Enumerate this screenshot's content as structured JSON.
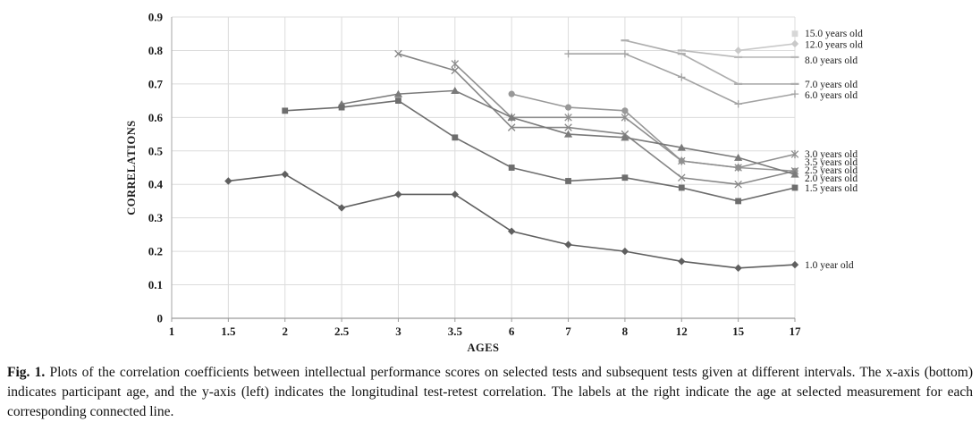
{
  "figure": {
    "caption_label": "Fig. 1.",
    "caption_text": "Plots of the correlation coefficients between intellectual performance scores on selected tests and subsequent tests given at different intervals. The x-axis (bottom) indicates participant age, and the y-axis (left) indicates the longitudinal test-retest correlation. The labels at the right indicate the age at selected measurement for each corresponding connected line."
  },
  "chart_data": {
    "type": "line",
    "title": "",
    "xlabel": "AGES",
    "ylabel": "CORRELATIONS",
    "categories": [
      "1",
      "1.5",
      "2",
      "2.5",
      "3",
      "3.5",
      "6",
      "7",
      "8",
      "12",
      "15",
      "17"
    ],
    "y_tick_labels": [
      "0.9",
      "0.8",
      "0.7",
      "0.6",
      "0.5",
      "0.4",
      "0.3",
      "0.2",
      "0.1",
      "0"
    ],
    "ylim": [
      0,
      0.9
    ],
    "grid": true,
    "legend_position": "right-of-last-point",
    "gridline_color": "#dcdcdc",
    "axis_color": "#9a9a9a",
    "series": [
      {
        "name": "1.0 year old",
        "marker": "diamond",
        "color": "#5f5f5f",
        "label_v": 0.16,
        "values": [
          null,
          0.41,
          0.43,
          0.33,
          0.37,
          0.37,
          0.26,
          0.22,
          0.2,
          0.17,
          0.15,
          0.16
        ]
      },
      {
        "name": "1.5 years old",
        "marker": "square",
        "color": "#6d6d6d",
        "label_v": 0.39,
        "values": [
          null,
          null,
          0.62,
          0.63,
          0.65,
          0.54,
          0.45,
          0.41,
          0.42,
          0.39,
          0.35,
          0.39
        ]
      },
      {
        "name": "2.0 years old",
        "marker": "triangle",
        "color": "#7a7a7a",
        "label_v": 0.419,
        "values": [
          null,
          null,
          null,
          0.64,
          0.67,
          0.68,
          0.6,
          0.55,
          0.54,
          0.51,
          0.48,
          0.43
        ]
      },
      {
        "name": "2.5 years old",
        "marker": "x",
        "color": "#868686",
        "label_v": 0.443,
        "values": [
          null,
          null,
          null,
          null,
          0.79,
          0.74,
          0.57,
          0.57,
          0.55,
          0.42,
          0.4,
          0.44
        ]
      },
      {
        "name": "3.0 years old",
        "marker": "star",
        "color": "#8f8f8f",
        "label_v": 0.492,
        "values": [
          null,
          null,
          null,
          null,
          null,
          0.76,
          0.6,
          0.6,
          0.6,
          0.47,
          0.45,
          0.49
        ]
      },
      {
        "name": "3.5 years old",
        "marker": "circle",
        "color": "#989898",
        "label_v": 0.467,
        "values": [
          null,
          null,
          null,
          null,
          null,
          null,
          0.67,
          0.63,
          0.62,
          0.47,
          0.45,
          0.44
        ]
      },
      {
        "name": "6.0 years old",
        "marker": "plus",
        "color": "#a3a3a3",
        "label_v": 0.667,
        "values": [
          null,
          null,
          null,
          null,
          null,
          null,
          null,
          0.79,
          0.79,
          0.72,
          0.64,
          0.67
        ]
      },
      {
        "name": "7.0 years old",
        "marker": "dash",
        "color": "#aeaeae",
        "label_v": 0.7,
        "values": [
          null,
          null,
          null,
          null,
          null,
          null,
          null,
          null,
          0.83,
          0.79,
          0.7,
          0.7
        ]
      },
      {
        "name": "8.0 years old",
        "marker": "dash",
        "color": "#b9b9b9",
        "label_v": 0.772,
        "values": [
          null,
          null,
          null,
          null,
          null,
          null,
          null,
          null,
          null,
          0.8,
          0.78,
          0.78
        ]
      },
      {
        "name": "12.0 years old",
        "marker": "diamond",
        "color": "#c9c9c9",
        "label_v": 0.818,
        "values": [
          null,
          null,
          null,
          null,
          null,
          null,
          null,
          null,
          null,
          null,
          0.8,
          0.82
        ]
      },
      {
        "name": "15.0 years old",
        "marker": "square",
        "color": "#d7d7d7",
        "label_v": 0.852,
        "values": [
          null,
          null,
          null,
          null,
          null,
          null,
          null,
          null,
          null,
          null,
          null,
          0.85
        ]
      }
    ]
  }
}
